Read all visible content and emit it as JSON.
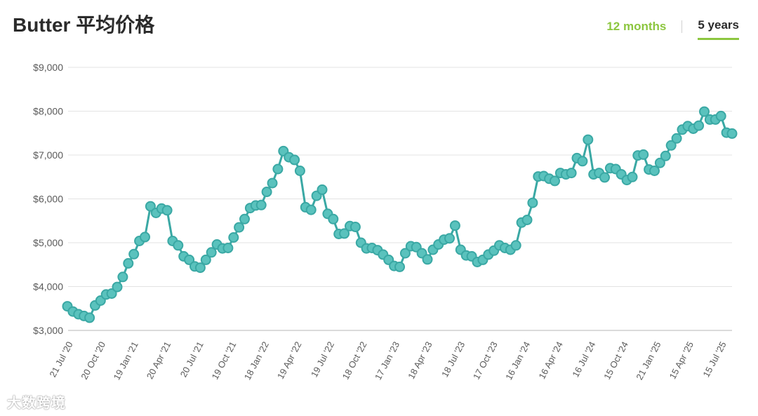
{
  "header": {
    "title": "Butter 平均价格",
    "tab_12m": "12 months",
    "tab_5y": "5 years"
  },
  "watermark": "大数跨境",
  "colors": {
    "line": "#3aa8a4",
    "marker_fill": "#5ac2bd",
    "marker_stroke": "#3aa8a4",
    "accent": "#8cc63f",
    "grid": "#e3e3e3"
  },
  "chart_data": {
    "type": "line",
    "title": "Butter 平均价格",
    "xlabel": "",
    "ylabel": "",
    "ylim": [
      3000,
      9000
    ],
    "grid": true,
    "y_ticks": [
      "$3,000",
      "$4,000",
      "$5,000",
      "$6,000",
      "$7,000",
      "$8,000",
      "$9,000"
    ],
    "x_ticks": [
      "21 Jul '20",
      "20 Oct '20",
      "19 Jan '21",
      "20 Apr '21",
      "20 Jul '21",
      "19 Oct '21",
      "18 Jan '22",
      "19 Apr '22",
      "19 Jul '22",
      "18 Oct '22",
      "17 Jan '23",
      "18 Apr '23",
      "18 Jul '23",
      "17 Oct '23",
      "16 Jan '24",
      "16 Apr '24",
      "16 Jul '24",
      "15 Oct '24",
      "21 Jan '25",
      "15 Apr '25",
      "15 Jul '25"
    ],
    "series": [
      {
        "values": [
          3550,
          3430,
          3370,
          3330,
          3290,
          3570,
          3680,
          3820,
          3840,
          3990,
          4220,
          4530,
          4740,
          5040,
          5130,
          5830,
          5680,
          5780,
          5740,
          5040,
          4940,
          4690,
          4610,
          4460,
          4430,
          4610,
          4780,
          4960,
          4870,
          4880,
          5120,
          5350,
          5540,
          5790,
          5850,
          5860,
          6160,
          6360,
          6680,
          7090,
          6950,
          6890,
          6640,
          5810,
          5750,
          6070,
          6210,
          5660,
          5540,
          5200,
          5210,
          5380,
          5360,
          5000,
          4870,
          4880,
          4830,
          4730,
          4610,
          4470,
          4450,
          4760,
          4920,
          4900,
          4760,
          4620,
          4840,
          4960,
          5070,
          5100,
          5390,
          4840,
          4710,
          4690,
          4560,
          4610,
          4730,
          4820,
          4940,
          4880,
          4840,
          4940,
          5460,
          5520,
          5910,
          6510,
          6520,
          6460,
          6410,
          6590,
          6560,
          6590,
          6930,
          6860,
          7350,
          6560,
          6590,
          6490,
          6700,
          6680,
          6560,
          6430,
          6500,
          6990,
          7010,
          6670,
          6640,
          6820,
          6980,
          7220,
          7380,
          7580,
          7660,
          7600,
          7670,
          7990,
          7810,
          7810,
          7890,
          7510,
          7490
        ]
      }
    ]
  }
}
